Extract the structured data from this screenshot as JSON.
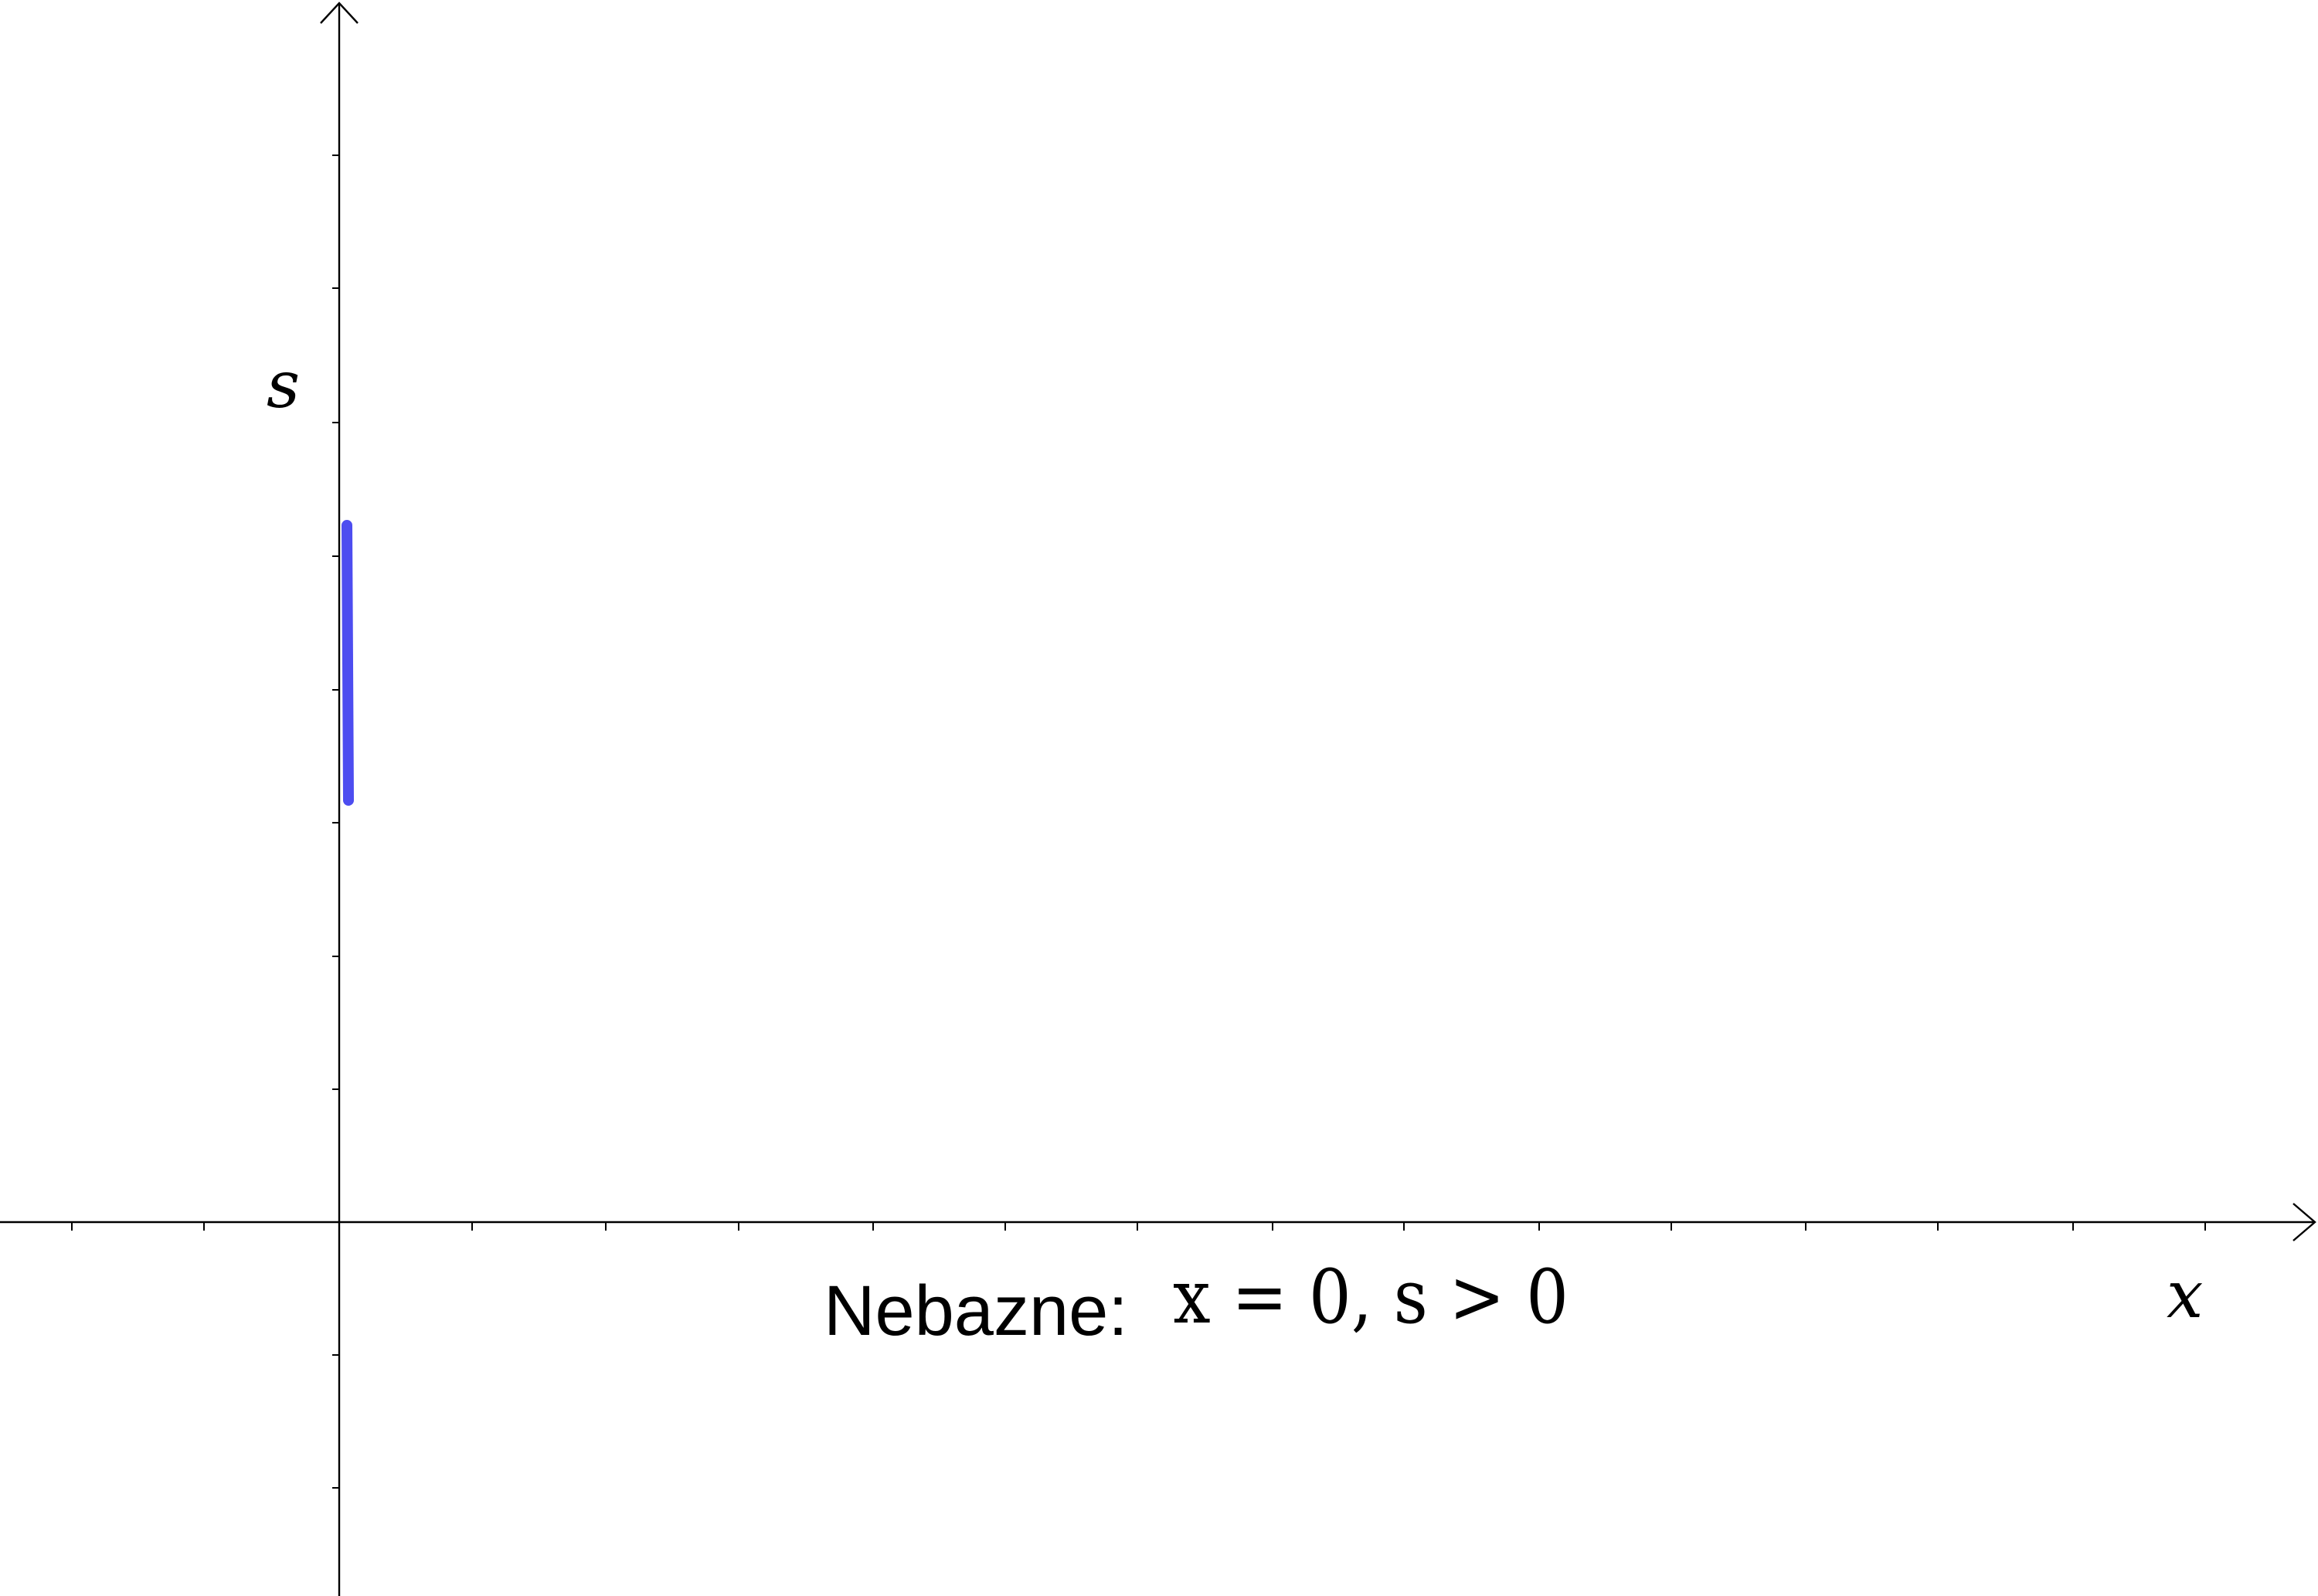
{
  "axes": {
    "x_label": "x",
    "y_label": "s"
  },
  "caption": {
    "label": "Nebazne:",
    "math": "x = 0, s > 0"
  },
  "colors": {
    "axis": "#000000",
    "segment": "#4d4df0"
  },
  "segment": {
    "name": "feasible-set-x0-s-positive"
  }
}
